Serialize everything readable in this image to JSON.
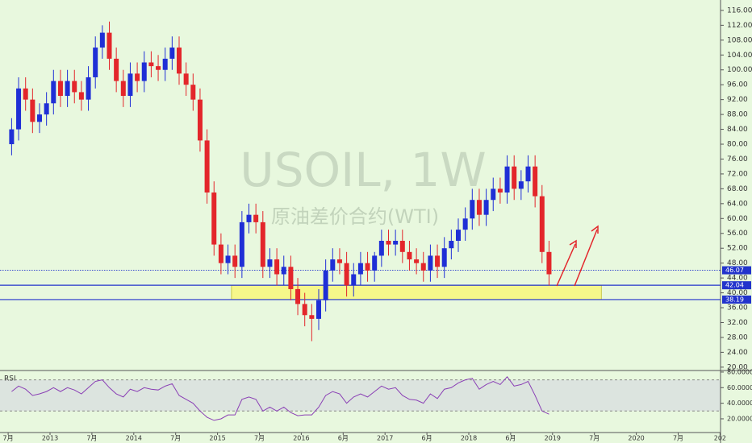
{
  "chart_data": {
    "type": "candlestick",
    "title": "USOIL, 1W",
    "subtitle": "原油差价合约(WTI)",
    "x": [
      "2012-07",
      "2012-08",
      "2012-09",
      "2012-10",
      "2012-11",
      "2012-12",
      "2013-01",
      "2013-02",
      "2013-03",
      "2013-04",
      "2013-05",
      "2013-06",
      "2013-07",
      "2013-08",
      "2013-09",
      "2013-10",
      "2013-11",
      "2013-12",
      "2014-01",
      "2014-02",
      "2014-03",
      "2014-04",
      "2014-05",
      "2014-06",
      "2014-07",
      "2014-08",
      "2014-09",
      "2014-10",
      "2014-11",
      "2014-12",
      "2015-01",
      "2015-02",
      "2015-03",
      "2015-04",
      "2015-05",
      "2015-06",
      "2015-07",
      "2015-08",
      "2015-09",
      "2015-10",
      "2015-11",
      "2015-12",
      "2016-01",
      "2016-02",
      "2016-03",
      "2016-04",
      "2016-05",
      "2016-06",
      "2016-07",
      "2016-08",
      "2016-09",
      "2016-10",
      "2016-11",
      "2016-12",
      "2017-01",
      "2017-02",
      "2017-03",
      "2017-04",
      "2017-05",
      "2017-06",
      "2017-07",
      "2017-08",
      "2017-09",
      "2017-10",
      "2017-11",
      "2017-12",
      "2018-01",
      "2018-02",
      "2018-03",
      "2018-04",
      "2018-05",
      "2018-06",
      "2018-07",
      "2018-08",
      "2018-09",
      "2018-10",
      "2018-11",
      "2018-12"
    ],
    "open": [
      80,
      84,
      95,
      92,
      86,
      88,
      91,
      97,
      93,
      97,
      94,
      92,
      98,
      106,
      110,
      103,
      97,
      93,
      99,
      97,
      102,
      101,
      100,
      103,
      106,
      99,
      96,
      92,
      81,
      67,
      53,
      48,
      50,
      47,
      59,
      61,
      59,
      47,
      49,
      45,
      47,
      41,
      37,
      34,
      33,
      38,
      46,
      49,
      48,
      42,
      45,
      48,
      46,
      50,
      54,
      53,
      54,
      51,
      49,
      48,
      46,
      50,
      47,
      52,
      54,
      57,
      60,
      65,
      61,
      65,
      68,
      67,
      74,
      68,
      70,
      74,
      66,
      51
    ],
    "high": [
      87,
      98,
      98,
      95,
      91,
      94,
      100,
      100,
      100,
      100,
      97,
      101,
      109,
      112,
      113,
      106,
      100,
      102,
      102,
      105,
      105,
      104,
      106,
      109,
      109,
      102,
      99,
      95,
      84,
      70,
      56,
      53,
      53,
      62,
      64,
      64,
      62,
      52,
      52,
      50,
      50,
      44,
      40,
      37,
      41,
      49,
      52,
      52,
      51,
      48,
      51,
      51,
      51,
      57,
      57,
      57,
      57,
      54,
      52,
      51,
      53,
      53,
      55,
      57,
      60,
      63,
      68,
      68,
      68,
      71,
      71,
      77,
      77,
      73,
      77,
      77,
      69,
      54
    ],
    "low": [
      77,
      81,
      89,
      83,
      83,
      85,
      88,
      90,
      90,
      91,
      89,
      89,
      95,
      103,
      100,
      94,
      90,
      90,
      94,
      94,
      98,
      97,
      97,
      100,
      96,
      93,
      89,
      78,
      64,
      50,
      45,
      45,
      44,
      44,
      56,
      56,
      44,
      44,
      42,
      42,
      38,
      34,
      31,
      27,
      30,
      35,
      43,
      45,
      39,
      39,
      42,
      43,
      43,
      47,
      50,
      50,
      48,
      46,
      45,
      43,
      43,
      44,
      44,
      49,
      51,
      54,
      57,
      58,
      58,
      62,
      64,
      64,
      65,
      65,
      67,
      63,
      48,
      42
    ],
    "close": [
      84,
      95,
      92,
      86,
      88,
      91,
      97,
      93,
      97,
      94,
      92,
      98,
      106,
      110,
      103,
      97,
      93,
      99,
      97,
      102,
      101,
      100,
      103,
      106,
      99,
      96,
      92,
      81,
      67,
      53,
      48,
      50,
      47,
      59,
      61,
      59,
      47,
      49,
      45,
      47,
      41,
      37,
      34,
      33,
      38,
      46,
      49,
      48,
      42,
      45,
      48,
      46,
      50,
      54,
      53,
      54,
      51,
      49,
      48,
      46,
      50,
      47,
      52,
      54,
      57,
      60,
      65,
      61,
      65,
      68,
      67,
      74,
      68,
      70,
      74,
      66,
      51,
      45
    ],
    "up_color": "#1f2fd6",
    "down_color": "#e3262b",
    "ylim": [
      19.1,
      118.8
    ],
    "yticks": [
      {
        "value": 20,
        "label": "20.00"
      },
      {
        "value": 24,
        "label": "24.00"
      },
      {
        "value": 28,
        "label": "28.00"
      },
      {
        "value": 32,
        "label": "32.00"
      },
      {
        "value": 36,
        "label": "36.00"
      },
      {
        "value": 40,
        "label": "40.00"
      },
      {
        "value": 44,
        "label": "44.00"
      },
      {
        "value": 48,
        "label": "48.00"
      },
      {
        "value": 52,
        "label": "52.00"
      },
      {
        "value": 56,
        "label": "56.00"
      },
      {
        "value": 60,
        "label": "60.00"
      },
      {
        "value": 64,
        "label": "64.00"
      },
      {
        "value": 68,
        "label": "68.00"
      },
      {
        "value": 72,
        "label": "72.00"
      },
      {
        "value": 76,
        "label": "76.00"
      },
      {
        "value": 80,
        "label": "80.00"
      },
      {
        "value": 84,
        "label": "84.00"
      },
      {
        "value": 88,
        "label": "88.00"
      },
      {
        "value": 92,
        "label": "92.00"
      },
      {
        "value": 96,
        "label": "96.00"
      },
      {
        "value": 100,
        "label": "100.00"
      },
      {
        "value": 104,
        "label": "104.00"
      },
      {
        "value": 108,
        "label": "108.00"
      },
      {
        "value": 112,
        "label": "112.00"
      },
      {
        "value": 116,
        "label": "116.00"
      }
    ],
    "xticks": [
      {
        "value": "2012-07",
        "label": "7月"
      },
      {
        "value": "2013-01",
        "label": "2013"
      },
      {
        "value": "2013-07",
        "label": "7月"
      },
      {
        "value": "2014-01",
        "label": "2014"
      },
      {
        "value": "2014-07",
        "label": "7月"
      },
      {
        "value": "2015-01",
        "label": "2015"
      },
      {
        "value": "2015-07",
        "label": "7月"
      },
      {
        "value": "2016-01",
        "label": "2016"
      },
      {
        "value": "2016-07",
        "label": "6月"
      },
      {
        "value": "2017-01",
        "label": "2017"
      },
      {
        "value": "2017-07",
        "label": "6月"
      },
      {
        "value": "2018-01",
        "label": "2018"
      },
      {
        "value": "2018-07",
        "label": "6月"
      },
      {
        "value": "2019-01",
        "label": "2019"
      },
      {
        "value": "2019-07",
        "label": "7月"
      },
      {
        "value": "2020-01",
        "label": "2020"
      },
      {
        "value": "2020-07",
        "label": "7月"
      },
      {
        "value": "2021-01",
        "label": "202"
      }
    ],
    "levels": [
      {
        "value": 46.07,
        "label": "46.07",
        "style": "dotted",
        "color": "#2233cc"
      },
      {
        "value": 42.04,
        "label": "42.04",
        "style": "solid",
        "color": "#2233cc"
      },
      {
        "value": 38.19,
        "label": "38.19",
        "style": "solid",
        "color": "#2233cc"
      }
    ],
    "zone": {
      "x0": "2015-03",
      "x1": "2019-08",
      "y0": 38.19,
      "y1": 42.04,
      "color": "#f6f78a"
    },
    "rsi": {
      "label": "RSI",
      "color": "#8a3fb5",
      "values": [
        55,
        62,
        58,
        50,
        52,
        55,
        60,
        55,
        60,
        57,
        52,
        60,
        68,
        70,
        60,
        52,
        48,
        58,
        55,
        60,
        58,
        57,
        62,
        65,
        50,
        45,
        40,
        30,
        22,
        18,
        20,
        25,
        25,
        45,
        48,
        45,
        30,
        35,
        30,
        35,
        28,
        24,
        25,
        25,
        35,
        50,
        55,
        52,
        40,
        48,
        52,
        48,
        55,
        62,
        58,
        60,
        50,
        45,
        44,
        40,
        52,
        46,
        58,
        60,
        66,
        70,
        72,
        58,
        64,
        68,
        64,
        74,
        62,
        64,
        68,
        50,
        30,
        26
      ],
      "ylim": [
        2.4,
        82
      ],
      "bands": [
        30,
        70
      ],
      "yticks": [
        {
          "value": 20,
          "label": "20.0000"
        },
        {
          "value": 40,
          "label": "40.0000"
        },
        {
          "value": 60,
          "label": "60.0000"
        },
        {
          "value": 80,
          "label": "80.0000"
        }
      ]
    }
  }
}
